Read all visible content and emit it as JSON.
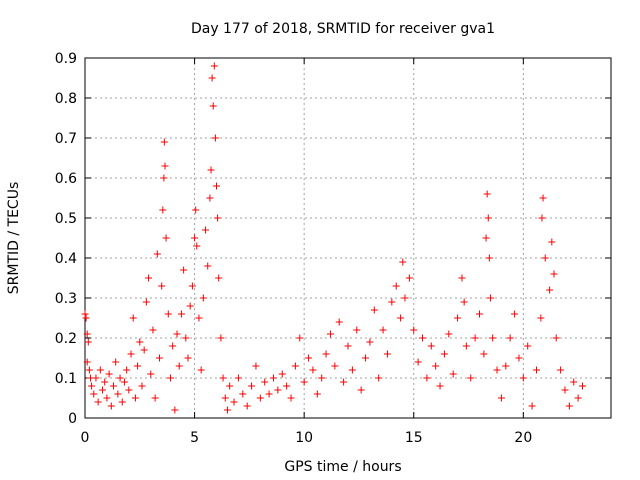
{
  "chart_data": {
    "type": "scatter",
    "title": "Day 177 of 2018, SRMTID for receiver gva1",
    "xlabel": "GPS time / hours",
    "ylabel": "SRMTID / TECUs",
    "xlim": [
      0,
      24
    ],
    "ylim": [
      0,
      0.9
    ],
    "xticks": [
      0,
      5,
      10,
      15,
      20
    ],
    "xtick_labels": [
      "0",
      "5",
      "10",
      "15",
      "20"
    ],
    "yticks": [
      0,
      0.1,
      0.2,
      0.3,
      0.4,
      0.5,
      0.6,
      0.7,
      0.8,
      0.9
    ],
    "ytick_labels": [
      "0",
      "0.1",
      "0.2",
      "0.3",
      "0.4",
      "0.5",
      "0.6",
      "0.7",
      "0.8",
      "0.9"
    ],
    "grid": true,
    "marker": "+",
    "series": [
      {
        "name": "SRMTID",
        "color": "#ff0000",
        "points": [
          [
            0.0,
            0.26
          ],
          [
            0.05,
            0.25
          ],
          [
            0.1,
            0.21
          ],
          [
            0.1,
            0.14
          ],
          [
            0.15,
            0.19
          ],
          [
            0.2,
            0.12
          ],
          [
            0.25,
            0.1
          ],
          [
            0.3,
            0.08
          ],
          [
            0.4,
            0.06
          ],
          [
            0.5,
            0.1
          ],
          [
            0.6,
            0.04
          ],
          [
            0.7,
            0.12
          ],
          [
            0.8,
            0.07
          ],
          [
            0.9,
            0.09
          ],
          [
            1.0,
            0.05
          ],
          [
            1.1,
            0.11
          ],
          [
            1.2,
            0.03
          ],
          [
            1.3,
            0.08
          ],
          [
            1.4,
            0.14
          ],
          [
            1.5,
            0.06
          ],
          [
            1.6,
            0.1
          ],
          [
            1.7,
            0.04
          ],
          [
            1.8,
            0.09
          ],
          [
            1.9,
            0.12
          ],
          [
            2.0,
            0.07
          ],
          [
            2.1,
            0.16
          ],
          [
            2.2,
            0.25
          ],
          [
            2.3,
            0.05
          ],
          [
            2.4,
            0.13
          ],
          [
            2.5,
            0.19
          ],
          [
            2.6,
            0.08
          ],
          [
            2.7,
            0.17
          ],
          [
            2.8,
            0.29
          ],
          [
            2.9,
            0.35
          ],
          [
            3.0,
            0.11
          ],
          [
            3.1,
            0.22
          ],
          [
            3.2,
            0.05
          ],
          [
            3.3,
            0.41
          ],
          [
            3.4,
            0.15
          ],
          [
            3.5,
            0.33
          ],
          [
            3.55,
            0.52
          ],
          [
            3.6,
            0.6
          ],
          [
            3.62,
            0.69
          ],
          [
            3.65,
            0.63
          ],
          [
            3.7,
            0.45
          ],
          [
            3.8,
            0.26
          ],
          [
            3.9,
            0.1
          ],
          [
            4.0,
            0.18
          ],
          [
            4.1,
            0.02
          ],
          [
            4.2,
            0.21
          ],
          [
            4.3,
            0.13
          ],
          [
            4.4,
            0.26
          ],
          [
            4.5,
            0.37
          ],
          [
            4.6,
            0.2
          ],
          [
            4.7,
            0.15
          ],
          [
            4.8,
            0.28
          ],
          [
            4.9,
            0.33
          ],
          [
            5.0,
            0.45
          ],
          [
            5.05,
            0.52
          ],
          [
            5.1,
            0.43
          ],
          [
            5.2,
            0.25
          ],
          [
            5.3,
            0.12
          ],
          [
            5.4,
            0.3
          ],
          [
            5.5,
            0.47
          ],
          [
            5.6,
            0.38
          ],
          [
            5.7,
            0.55
          ],
          [
            5.75,
            0.62
          ],
          [
            5.8,
            0.85
          ],
          [
            5.85,
            0.78
          ],
          [
            5.9,
            0.88
          ],
          [
            5.95,
            0.7
          ],
          [
            6.0,
            0.58
          ],
          [
            6.05,
            0.5
          ],
          [
            6.1,
            0.35
          ],
          [
            6.2,
            0.2
          ],
          [
            6.3,
            0.1
          ],
          [
            6.4,
            0.05
          ],
          [
            6.5,
            0.02
          ],
          [
            6.6,
            0.08
          ],
          [
            6.8,
            0.04
          ],
          [
            7.0,
            0.1
          ],
          [
            7.2,
            0.06
          ],
          [
            7.4,
            0.03
          ],
          [
            7.6,
            0.08
          ],
          [
            7.8,
            0.13
          ],
          [
            8.0,
            0.05
          ],
          [
            8.2,
            0.09
          ],
          [
            8.4,
            0.06
          ],
          [
            8.6,
            0.1
          ],
          [
            8.8,
            0.07
          ],
          [
            9.0,
            0.11
          ],
          [
            9.2,
            0.08
          ],
          [
            9.4,
            0.05
          ],
          [
            9.6,
            0.13
          ],
          [
            9.8,
            0.2
          ],
          [
            10.0,
            0.09
          ],
          [
            10.2,
            0.15
          ],
          [
            10.4,
            0.12
          ],
          [
            10.6,
            0.06
          ],
          [
            10.8,
            0.1
          ],
          [
            11.0,
            0.16
          ],
          [
            11.2,
            0.21
          ],
          [
            11.4,
            0.13
          ],
          [
            11.6,
            0.24
          ],
          [
            11.8,
            0.09
          ],
          [
            12.0,
            0.18
          ],
          [
            12.2,
            0.12
          ],
          [
            12.4,
            0.22
          ],
          [
            12.6,
            0.07
          ],
          [
            12.8,
            0.15
          ],
          [
            13.0,
            0.19
          ],
          [
            13.2,
            0.27
          ],
          [
            13.4,
            0.1
          ],
          [
            13.6,
            0.22
          ],
          [
            13.8,
            0.16
          ],
          [
            14.0,
            0.29
          ],
          [
            14.2,
            0.33
          ],
          [
            14.4,
            0.25
          ],
          [
            14.5,
            0.39
          ],
          [
            14.6,
            0.3
          ],
          [
            14.8,
            0.35
          ],
          [
            15.0,
            0.22
          ],
          [
            15.2,
            0.14
          ],
          [
            15.4,
            0.2
          ],
          [
            15.6,
            0.1
          ],
          [
            15.8,
            0.18
          ],
          [
            16.0,
            0.13
          ],
          [
            16.2,
            0.08
          ],
          [
            16.4,
            0.16
          ],
          [
            16.6,
            0.21
          ],
          [
            16.8,
            0.11
          ],
          [
            17.0,
            0.25
          ],
          [
            17.2,
            0.35
          ],
          [
            17.3,
            0.29
          ],
          [
            17.4,
            0.18
          ],
          [
            17.6,
            0.1
          ],
          [
            17.8,
            0.2
          ],
          [
            18.0,
            0.26
          ],
          [
            18.2,
            0.16
          ],
          [
            18.3,
            0.45
          ],
          [
            18.35,
            0.56
          ],
          [
            18.4,
            0.5
          ],
          [
            18.45,
            0.4
          ],
          [
            18.5,
            0.3
          ],
          [
            18.6,
            0.2
          ],
          [
            18.8,
            0.12
          ],
          [
            19.0,
            0.05
          ],
          [
            19.2,
            0.13
          ],
          [
            19.4,
            0.2
          ],
          [
            19.6,
            0.26
          ],
          [
            19.8,
            0.15
          ],
          [
            20.0,
            0.1
          ],
          [
            20.2,
            0.18
          ],
          [
            20.4,
            0.03
          ],
          [
            20.6,
            0.12
          ],
          [
            20.8,
            0.25
          ],
          [
            20.85,
            0.5
          ],
          [
            20.9,
            0.55
          ],
          [
            21.0,
            0.4
          ],
          [
            21.2,
            0.32
          ],
          [
            21.3,
            0.44
          ],
          [
            21.4,
            0.36
          ],
          [
            21.5,
            0.2
          ],
          [
            21.7,
            0.12
          ],
          [
            21.9,
            0.07
          ],
          [
            22.1,
            0.03
          ],
          [
            22.3,
            0.09
          ],
          [
            22.5,
            0.05
          ],
          [
            22.7,
            0.08
          ]
        ]
      }
    ]
  }
}
